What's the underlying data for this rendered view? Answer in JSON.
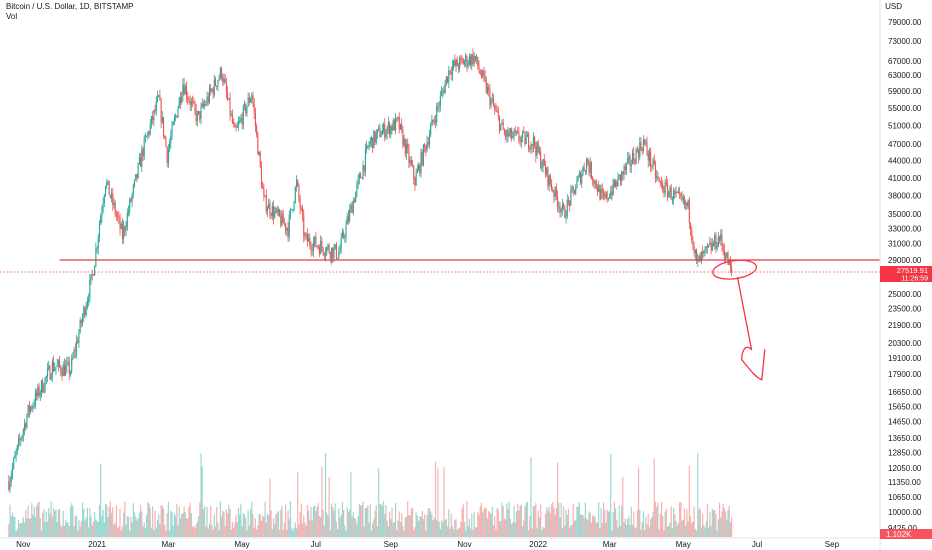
{
  "header": {
    "title": "Bitcoin / U.S. Dollar, 1D, BITSTAMP",
    "volume_label": "Vol"
  },
  "price_axis": {
    "currency": "USD",
    "ticks": [
      "79000.00",
      "73000.00",
      "67000.00",
      "63000.00",
      "59000.00",
      "55000.00",
      "51000.00",
      "47000.00",
      "44000.00",
      "41000.00",
      "38000.00",
      "35000.00",
      "33000.00",
      "31000.00",
      "29000.00",
      "25000.00",
      "23500.00",
      "21900.00",
      "20300.00",
      "19100.00",
      "17900.00",
      "16650.00",
      "15650.00",
      "14650.00",
      "13650.00",
      "12850.00",
      "12050.00",
      "11350.00",
      "10650.00",
      "10000.00",
      "9425.00"
    ],
    "current_price": "27519.91",
    "countdown": "11:26:59",
    "volume_value": "1.102K"
  },
  "time_axis": {
    "labels": [
      "Nov",
      "2021",
      "Mar",
      "May",
      "Jul",
      "Sep",
      "Nov",
      "2022",
      "Mar",
      "May",
      "Jul",
      "Sep"
    ]
  },
  "colors": {
    "up": "#26a69a",
    "down": "#ef5350",
    "drawing": "#f23645",
    "price_badge": "#f23645",
    "volume_badge": "#f7525f"
  },
  "chart_data": {
    "type": "candlestick",
    "title": "Bitcoin / U.S. Dollar, 1D, BITSTAMP",
    "xlabel": "",
    "ylabel": "USD",
    "scale": "log",
    "ylim": [
      9425,
      79000
    ],
    "x_range": [
      "2020-10-16",
      "2022-09-30"
    ],
    "candle_interval": "1D",
    "legend": "none",
    "grid": false,
    "close_path": [
      [
        "2020-10-20",
        11400
      ],
      [
        "2020-11-05",
        15300
      ],
      [
        "2020-11-25",
        18500
      ],
      [
        "2020-12-10",
        18200
      ],
      [
        "2020-12-28",
        27000
      ],
      [
        "2021-01-08",
        40500
      ],
      [
        "2021-01-22",
        32000
      ],
      [
        "2021-02-08",
        46000
      ],
      [
        "2021-02-21",
        57000
      ],
      [
        "2021-02-28",
        45000
      ],
      [
        "2021-03-13",
        61000
      ],
      [
        "2021-03-25",
        52500
      ],
      [
        "2021-04-14",
        64000
      ],
      [
        "2021-04-25",
        49000
      ],
      [
        "2021-05-09",
        58500
      ],
      [
        "2021-05-19",
        37000
      ],
      [
        "2021-06-08",
        33000
      ],
      [
        "2021-06-15",
        40000
      ],
      [
        "2021-06-22",
        31500
      ],
      [
        "2021-07-20",
        29800
      ],
      [
        "2021-08-14",
        47000
      ],
      [
        "2021-08-23",
        49500
      ],
      [
        "2021-09-07",
        51500
      ],
      [
        "2021-09-21",
        40500
      ],
      [
        "2021-10-20",
        65000
      ],
      [
        "2021-11-09",
        68000
      ],
      [
        "2021-12-04",
        49000
      ],
      [
        "2021-12-28",
        47500
      ],
      [
        "2022-01-22",
        35000
      ],
      [
        "2022-02-10",
        44000
      ],
      [
        "2022-02-24",
        37000
      ],
      [
        "2022-03-29",
        47400
      ],
      [
        "2022-04-11",
        40000
      ],
      [
        "2022-05-05",
        36000
      ],
      [
        "2022-05-12",
        28500
      ],
      [
        "2022-05-31",
        31800
      ],
      [
        "2022-06-10",
        27520
      ]
    ],
    "volume": {
      "latest": "1.102K"
    },
    "last_price": 27519.91
  },
  "annotations": {
    "support_level": 29000,
    "circle_marker": {
      "date": "2022-06-10",
      "price": 27800
    },
    "arrow_target": {
      "date": "2022-07-05",
      "price": 17500
    }
  }
}
